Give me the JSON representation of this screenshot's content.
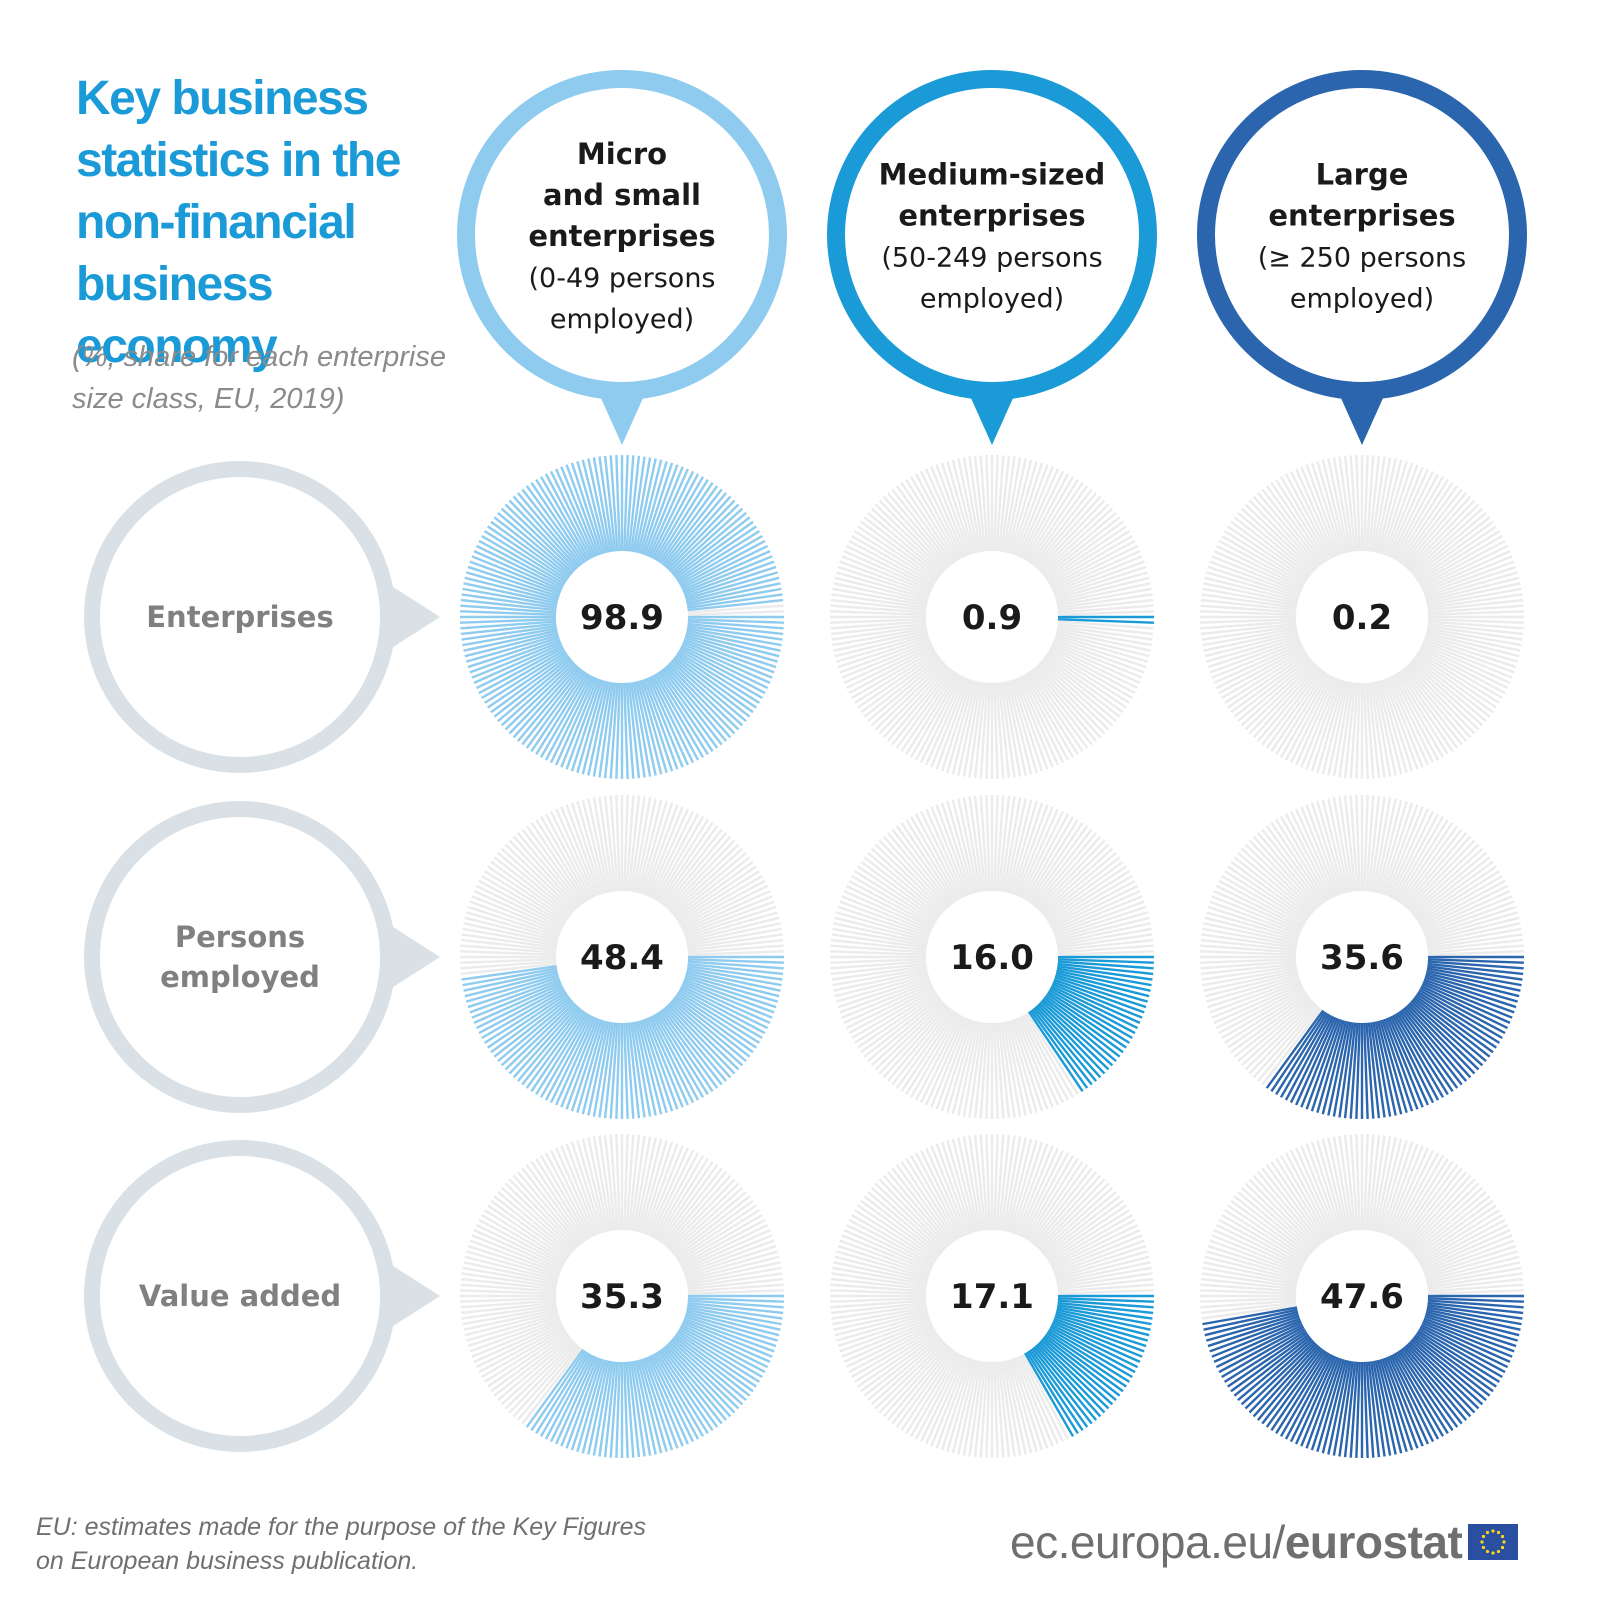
{
  "title_lines": [
    "Key business",
    "statistics in the",
    "non-financial",
    "business economy"
  ],
  "subtitle_lines": [
    "(%, share for each enterprise",
    "size class, EU, 2019)"
  ],
  "footnote_lines": [
    "EU: estimates made for the purpose of the Key Figures",
    "on European business publication."
  ],
  "source": {
    "url": "ec.europa.eu/",
    "brand": "eurostat"
  },
  "colors": {
    "micro": "#8ecbef",
    "medium": "#1a9ad6",
    "large": "#2a65ad",
    "track": "#ebebeb",
    "label_circle": "#d9e1e6",
    "label_text": "#808080",
    "value_text": "#1a1a1a",
    "flag": "#2a4fa0",
    "flag_stars": "#ffd617"
  },
  "chart_data": {
    "type": "radial-bar",
    "unit": "%",
    "columns": [
      {
        "key": "micro",
        "header_bold": [
          "Micro",
          "and small",
          "enterprises"
        ],
        "header_sub": [
          "(0-49 persons",
          "employed)"
        ]
      },
      {
        "key": "medium",
        "header_bold": [
          "Medium-sized",
          "enterprises"
        ],
        "header_sub": [
          "(50-249 persons",
          "employed)"
        ]
      },
      {
        "key": "large",
        "header_bold": [
          "Large",
          "enterprises"
        ],
        "header_sub": [
          "(≥ 250 persons",
          "employed)"
        ]
      }
    ],
    "rows": [
      {
        "label": [
          "Enterprises"
        ],
        "values": [
          98.9,
          0.9,
          0.2
        ],
        "display": [
          "98.9",
          "0.9",
          "0.2"
        ]
      },
      {
        "label": [
          "Persons",
          "employed"
        ],
        "values": [
          48.4,
          16.0,
          35.6
        ],
        "display": [
          "48.4",
          "16.0",
          "35.6"
        ]
      },
      {
        "label": [
          "Value added"
        ],
        "values": [
          35.3,
          17.1,
          47.6
        ],
        "display": [
          "35.3",
          "17.1",
          "47.6"
        ]
      }
    ]
  }
}
